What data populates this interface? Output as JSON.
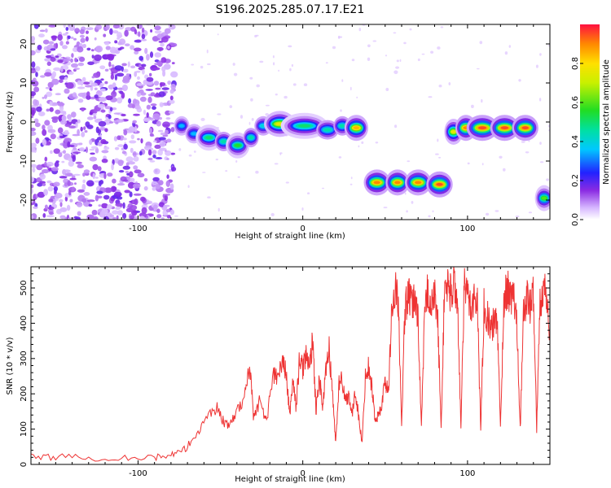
{
  "title": "S196.2025.285.07.17.E21",
  "chart_data": [
    {
      "type": "heatmap",
      "name": "spectrogram",
      "xlabel": "Height of straight line (km)",
      "ylabel": "Frequency (Hz)",
      "xlim": [
        -165,
        150
      ],
      "ylim": [
        -25,
        25
      ],
      "xticks": [
        -100,
        0,
        100
      ],
      "yticks": [
        -20,
        -10,
        0,
        10,
        20
      ],
      "noise_region": {
        "x": [
          -165,
          -78
        ],
        "note": "scattered low-amplitude noise"
      },
      "tracks": [
        {
          "x": [
            -77,
            -70
          ],
          "freq": -1,
          "amp": 0.35
        },
        {
          "x": [
            -70,
            -62
          ],
          "freq": -3,
          "amp": 0.35
        },
        {
          "x": [
            -62,
            -52
          ],
          "freq": -4,
          "amp": 0.5
        },
        {
          "x": [
            -52,
            -44
          ],
          "freq": -5,
          "amp": 0.45
        },
        {
          "x": [
            -44,
            -35
          ],
          "freq": -6,
          "amp": 0.55
        },
        {
          "x": [
            -35,
            -28
          ],
          "freq": -4,
          "amp": 0.45
        },
        {
          "x": [
            -28,
            -20
          ],
          "freq": -1,
          "amp": 0.4
        },
        {
          "x": [
            -20,
            -8
          ],
          "freq": -0.5,
          "amp": 0.75
        },
        {
          "x": [
            -8,
            10
          ],
          "freq": -1,
          "amp": 0.5
        },
        {
          "x": [
            10,
            20
          ],
          "freq": -2,
          "amp": 0.45
        },
        {
          "x": [
            20,
            28
          ],
          "freq": -1,
          "amp": 0.45
        },
        {
          "x": [
            28,
            37
          ],
          "freq": -1.5,
          "amp": 0.85
        },
        {
          "x": [
            40,
            50
          ],
          "freq": -15.5,
          "amp": 0.9
        },
        {
          "x": [
            53,
            62
          ],
          "freq": -15.5,
          "amp": 0.9
        },
        {
          "x": [
            65,
            75
          ],
          "freq": -15.5,
          "amp": 0.9
        },
        {
          "x": [
            78,
            88
          ],
          "freq": -16,
          "amp": 0.95
        },
        {
          "x": [
            88,
            95
          ],
          "freq": -2.5,
          "amp": 0.75
        },
        {
          "x": [
            95,
            103
          ],
          "freq": -1.5,
          "amp": 0.9
        },
        {
          "x": [
            103,
            115
          ],
          "freq": -1.5,
          "amp": 0.95
        },
        {
          "x": [
            117,
            128
          ],
          "freq": -1.5,
          "amp": 0.95
        },
        {
          "x": [
            130,
            140
          ],
          "freq": -1.5,
          "amp": 0.95
        },
        {
          "x": [
            143,
            150
          ],
          "freq": -19.5,
          "amp": 0.6
        }
      ],
      "colorbar": {
        "label": "Normalized spectral amplitude",
        "range": [
          0,
          1
        ],
        "ticks": [
          0.0,
          0.2,
          0.4,
          0.6,
          0.8
        ]
      }
    },
    {
      "type": "line",
      "name": "snr",
      "xlabel": "Height of straight line (km)",
      "ylabel": "SNR (10 * v/v)",
      "xlim": [
        -165,
        150
      ],
      "ylim": [
        0,
        560
      ],
      "xticks": [
        -100,
        0,
        100
      ],
      "yticks": [
        0,
        100,
        200,
        300,
        400,
        500
      ],
      "color": "#ee3333",
      "series": [
        {
          "name": "SNR",
          "points": [
            [
              -165,
              20
            ],
            [
              -150,
              22
            ],
            [
              -130,
              18
            ],
            [
              -110,
              20
            ],
            [
              -90,
              20
            ],
            [
              -80,
              25
            ],
            [
              -72,
              40
            ],
            [
              -65,
              80
            ],
            [
              -58,
              140
            ],
            [
              -52,
              160
            ],
            [
              -48,
              120
            ],
            [
              -44,
              110
            ],
            [
              -40,
              150
            ],
            [
              -35,
              200
            ],
            [
              -32,
              280
            ],
            [
              -30,
              140
            ],
            [
              -26,
              180
            ],
            [
              -22,
              120
            ],
            [
              -18,
              260
            ],
            [
              -15,
              240
            ],
            [
              -12,
              300
            ],
            [
              -10,
              250
            ],
            [
              -8,
              140
            ],
            [
              -6,
              240
            ],
            [
              -4,
              160
            ],
            [
              -2,
              300
            ],
            [
              0,
              270
            ],
            [
              2,
              320
            ],
            [
              4,
              260
            ],
            [
              6,
              360
            ],
            [
              8,
              150
            ],
            [
              10,
              250
            ],
            [
              12,
              160
            ],
            [
              14,
              260
            ],
            [
              16,
              330
            ],
            [
              18,
              200
            ],
            [
              20,
              60
            ],
            [
              22,
              230
            ],
            [
              24,
              240
            ],
            [
              26,
              180
            ],
            [
              28,
              200
            ],
            [
              30,
              140
            ],
            [
              32,
              210
            ],
            [
              34,
              130
            ],
            [
              36,
              60
            ],
            [
              38,
              250
            ],
            [
              40,
              280
            ],
            [
              42,
              220
            ],
            [
              44,
              120
            ],
            [
              46,
              140
            ],
            [
              48,
              170
            ],
            [
              50,
              240
            ],
            [
              52,
              200
            ],
            [
              54,
              440
            ],
            [
              56,
              500
            ],
            [
              58,
              460
            ],
            [
              60,
              100
            ],
            [
              62,
              440
            ],
            [
              64,
              480
            ],
            [
              66,
              450
            ],
            [
              68,
              470
            ],
            [
              70,
              420
            ],
            [
              72,
              100
            ],
            [
              74,
              430
            ],
            [
              76,
              500
            ],
            [
              78,
              440
            ],
            [
              80,
              480
            ],
            [
              82,
              400
            ],
            [
              84,
              100
            ],
            [
              86,
              500
            ],
            [
              88,
              510
            ],
            [
              90,
              480
            ],
            [
              92,
              520
            ],
            [
              94,
              450
            ],
            [
              96,
              100
            ],
            [
              98,
              500
            ],
            [
              100,
              480
            ],
            [
              102,
              450
            ],
            [
              104,
              470
            ],
            [
              106,
              460
            ],
            [
              108,
              100
            ],
            [
              110,
              450
            ],
            [
              112,
              420
            ],
            [
              114,
              380
            ],
            [
              116,
              400
            ],
            [
              118,
              420
            ],
            [
              120,
              100
            ],
            [
              122,
              460
            ],
            [
              124,
              500
            ],
            [
              126,
              470
            ],
            [
              128,
              480
            ],
            [
              130,
              400
            ],
            [
              132,
              100
            ],
            [
              134,
              420
            ],
            [
              136,
              480
            ],
            [
              138,
              440
            ],
            [
              140,
              490
            ],
            [
              142,
              100
            ],
            [
              144,
              460
            ],
            [
              146,
              500
            ],
            [
              148,
              480
            ],
            [
              150,
              350
            ]
          ]
        }
      ]
    }
  ]
}
